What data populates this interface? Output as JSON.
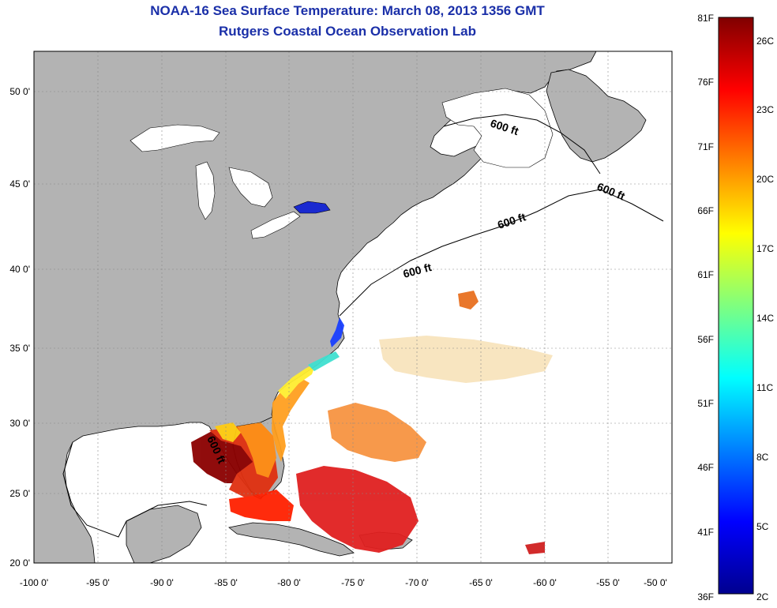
{
  "title_line1": "NOAA-16 Sea Surface Temperature:  March 08, 2013 1356 GMT",
  "title_line2": "Rutgers Coastal Ocean Observation Lab",
  "colors": {
    "land": "#b3b3b3",
    "ocean": "#ffffff",
    "title": "#1a2fa8",
    "gridline": "#888888"
  },
  "x_ticks": [
    "-100 0'",
    "-95 0'",
    "-90 0'",
    "-85 0'",
    "-80 0'",
    "-75 0'",
    "-70 0'",
    "-65 0'",
    "-60 0'",
    "-55 0'",
    "-50 0'"
  ],
  "y_ticks": [
    "50 0'",
    "45 0'",
    "40 0'",
    "35 0'",
    "30 0'",
    "25 0'",
    "20 0'"
  ],
  "contour_labels": [
    "600 ft",
    "600 ft",
    "600 ft",
    "600 ft",
    "600 ft"
  ],
  "colorbar": {
    "fahrenheit": [
      "81F",
      "76F",
      "71F",
      "66F",
      "61F",
      "56F",
      "51F",
      "46F",
      "41F",
      "36F"
    ],
    "celsius": [
      "26C",
      "23C",
      "20C",
      "17C",
      "14C",
      "11C",
      "8C",
      "5C",
      "2C"
    ],
    "colormap": "jet"
  }
}
